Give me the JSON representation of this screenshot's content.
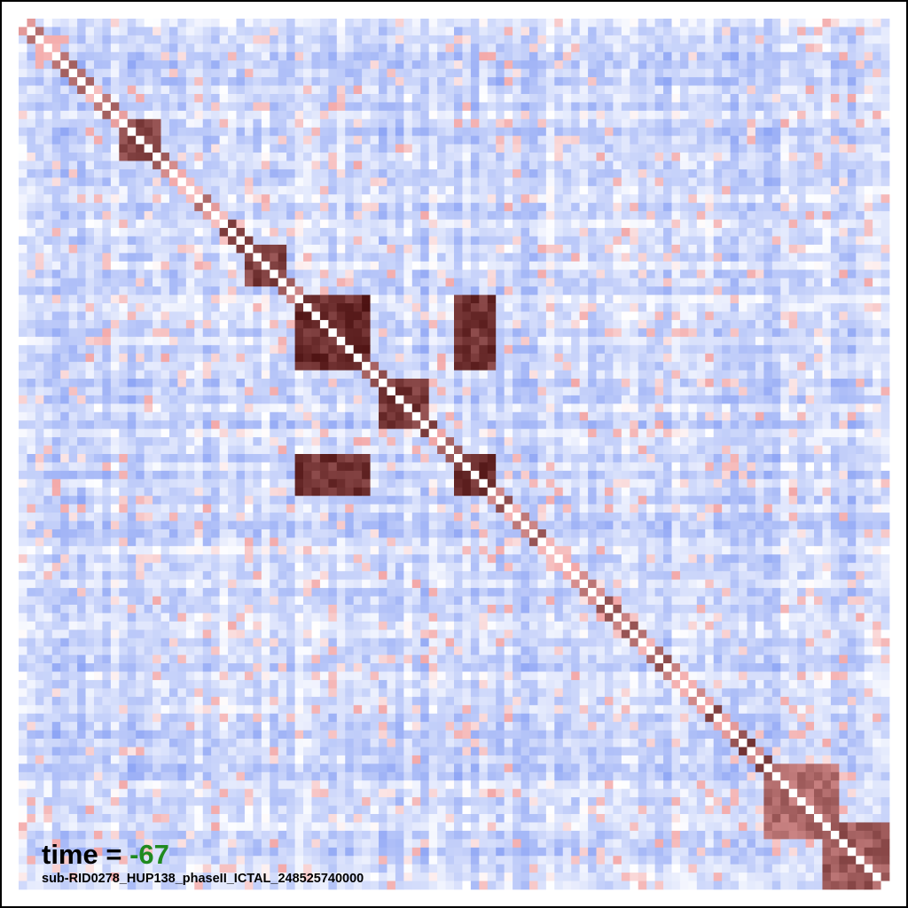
{
  "chart_data": {
    "type": "heatmap",
    "title": "",
    "xlabel": "",
    "ylabel": "",
    "n_channels": 104,
    "value_range": [
      -1,
      1
    ],
    "colormap": "coolwarm",
    "colors": {
      "negative": "#5d7ef0",
      "neutral": "#ffffff",
      "positive": "#f3a8a8",
      "max": "#3a0000"
    },
    "diagonal_value": 0,
    "strong_blocks": [
      {
        "rows": [
          33,
          41
        ],
        "cols": [
          33,
          41
        ],
        "value": 0.95
      },
      {
        "rows": [
          33,
          41
        ],
        "cols": [
          52,
          56
        ],
        "value": 0.92
      },
      {
        "rows": [
          52,
          56
        ],
        "cols": [
          33,
          41
        ],
        "value": 0.92
      },
      {
        "rows": [
          43,
          48
        ],
        "cols": [
          43,
          48
        ],
        "value": 0.9
      },
      {
        "rows": [
          52,
          56
        ],
        "cols": [
          52,
          56
        ],
        "value": 0.95
      },
      {
        "rows": [
          12,
          16
        ],
        "cols": [
          12,
          16
        ],
        "value": 0.88
      },
      {
        "rows": [
          27,
          31
        ],
        "cols": [
          27,
          31
        ],
        "value": 0.88
      },
      {
        "rows": [
          89,
          97
        ],
        "cols": [
          89,
          97
        ],
        "value": 0.75
      },
      {
        "rows": [
          96,
          103
        ],
        "cols": [
          96,
          103
        ],
        "value": 0.8
      }
    ]
  },
  "annotation": {
    "time_prefix": "time = ",
    "time_value": "-67",
    "filename": "sub-RID0278_HUP138_phaseII_ICTAL_248525740000"
  }
}
